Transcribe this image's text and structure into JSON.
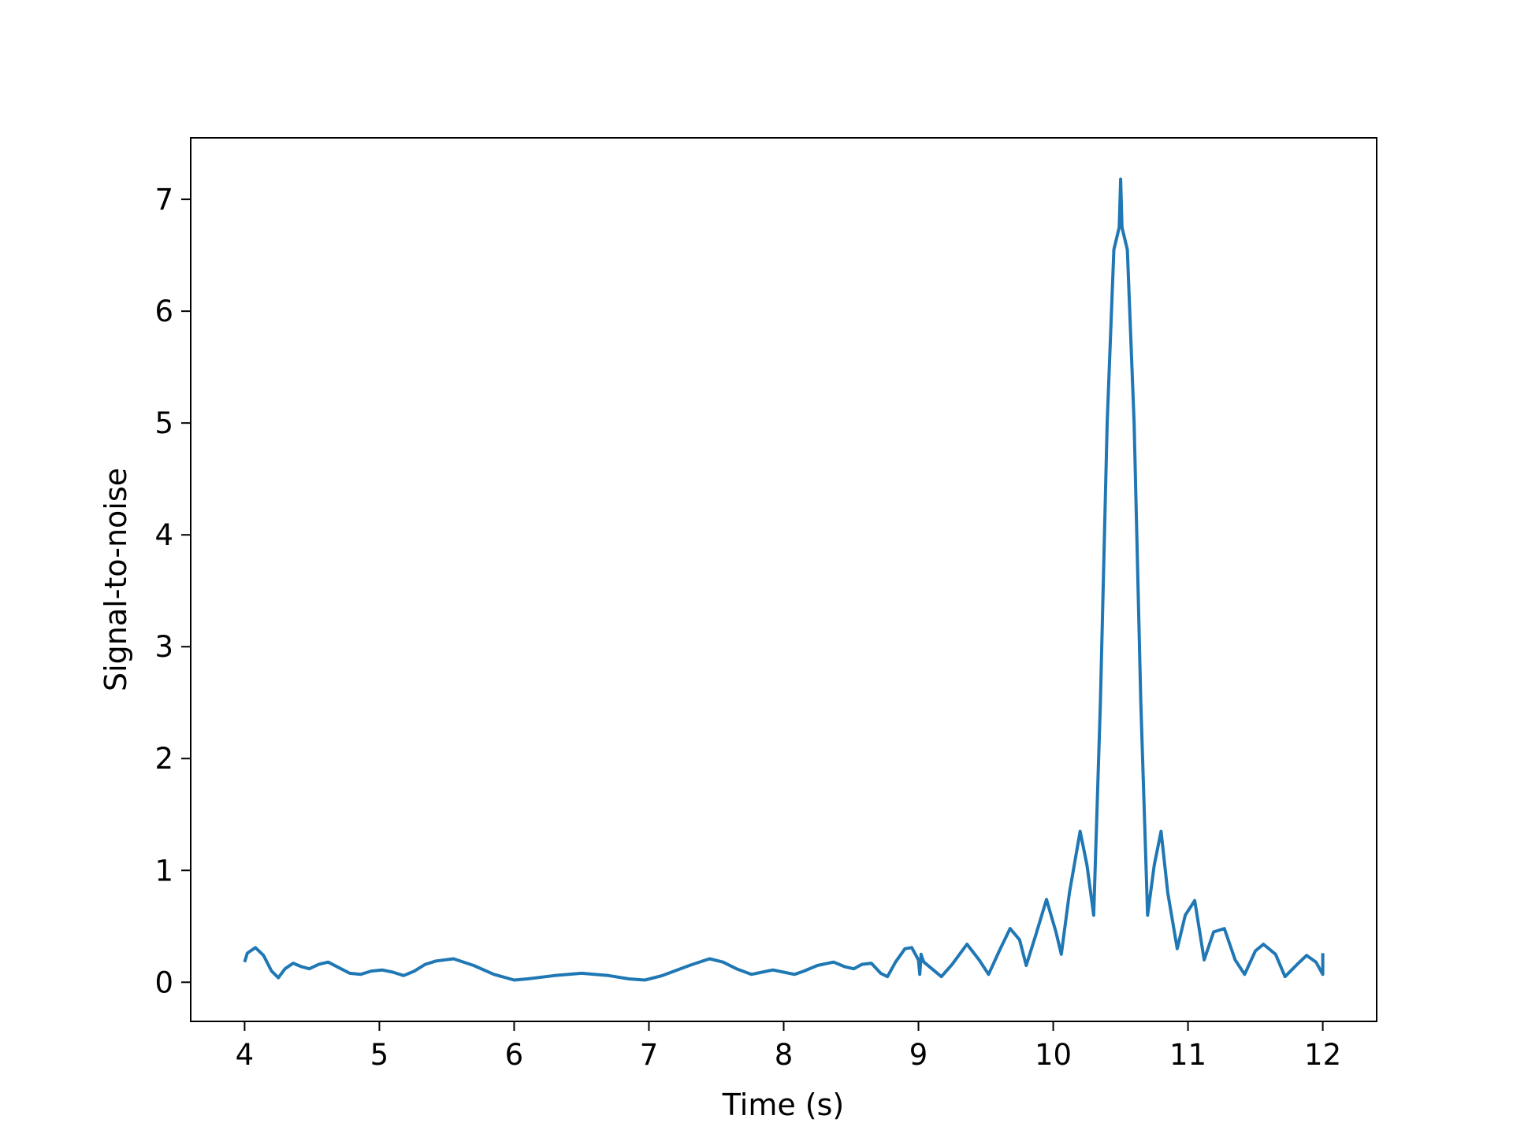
{
  "chart_data": {
    "type": "line",
    "title": "",
    "xlabel": "Time (s)",
    "ylabel": "Signal-to-noise",
    "xlim": [
      3.6,
      12.4
    ],
    "ylim": [
      -0.35,
      7.55
    ],
    "xticks": [
      4,
      5,
      6,
      7,
      8,
      9,
      10,
      11,
      12
    ],
    "xtick_labels": [
      "4",
      "5",
      "6",
      "7",
      "8",
      "9",
      "10",
      "11",
      "12"
    ],
    "yticks": [
      0,
      1,
      2,
      3,
      4,
      5,
      6,
      7
    ],
    "ytick_labels": [
      "0",
      "1",
      "2",
      "3",
      "4",
      "5",
      "6",
      "7"
    ],
    "grid": false,
    "legend": "none",
    "series": [
      {
        "color": "#1f77b4",
        "x": [
          4.0,
          4.02,
          4.08,
          4.14,
          4.2,
          4.25,
          4.3,
          4.36,
          4.42,
          4.48,
          4.55,
          4.62,
          4.7,
          4.78,
          4.86,
          4.94,
          5.02,
          5.1,
          5.18,
          5.26,
          5.34,
          5.42,
          5.55,
          5.7,
          5.85,
          6.0,
          6.1,
          6.3,
          6.5,
          6.7,
          6.85,
          6.97,
          7.1,
          7.3,
          7.45,
          7.55,
          7.65,
          7.76,
          7.84,
          7.92,
          8.0,
          8.08,
          8.15,
          8.25,
          8.37,
          8.45,
          8.52,
          8.58,
          8.65,
          8.72,
          8.77,
          8.83,
          8.9,
          8.95,
          9.0,
          9.01,
          9.02,
          9.03,
          9.04,
          9.1,
          9.17,
          9.25,
          9.36,
          9.45,
          9.52,
          9.6,
          9.68,
          9.75,
          9.8,
          9.87,
          9.95,
          10.02,
          10.06,
          10.12,
          10.2,
          10.25,
          10.3,
          10.35,
          10.4,
          10.45,
          10.49,
          10.5,
          10.51,
          10.55,
          10.6,
          10.65,
          10.7,
          10.75,
          10.8,
          10.85,
          10.92,
          10.98,
          11.05,
          11.12,
          11.19,
          11.27,
          11.35,
          11.42,
          11.5,
          11.56,
          11.65,
          11.72,
          11.81,
          11.88,
          11.95,
          12.0,
          12.0,
          12.0
        ],
        "y": [
          0.18,
          0.26,
          0.31,
          0.24,
          0.1,
          0.04,
          0.12,
          0.17,
          0.14,
          0.12,
          0.16,
          0.18,
          0.13,
          0.08,
          0.07,
          0.1,
          0.11,
          0.09,
          0.06,
          0.1,
          0.16,
          0.19,
          0.21,
          0.15,
          0.07,
          0.02,
          0.03,
          0.06,
          0.08,
          0.06,
          0.03,
          0.02,
          0.06,
          0.15,
          0.21,
          0.18,
          0.12,
          0.07,
          0.09,
          0.11,
          0.09,
          0.07,
          0.1,
          0.15,
          0.18,
          0.14,
          0.12,
          0.16,
          0.17,
          0.08,
          0.05,
          0.18,
          0.3,
          0.31,
          0.2,
          0.07,
          0.25,
          0.21,
          0.18,
          0.12,
          0.05,
          0.16,
          0.34,
          0.2,
          0.07,
          0.28,
          0.48,
          0.38,
          0.15,
          0.42,
          0.74,
          0.45,
          0.25,
          0.8,
          1.35,
          1.05,
          0.6,
          2.5,
          5.0,
          6.55,
          6.75,
          7.18,
          6.75,
          6.55,
          5.0,
          2.5,
          0.6,
          1.05,
          1.35,
          0.8,
          0.3,
          0.6,
          0.73,
          0.2,
          0.45,
          0.48,
          0.2,
          0.07,
          0.28,
          0.34,
          0.25,
          0.05,
          0.16,
          0.24,
          0.18,
          0.07,
          0.21,
          0.26
        ]
      }
    ]
  }
}
